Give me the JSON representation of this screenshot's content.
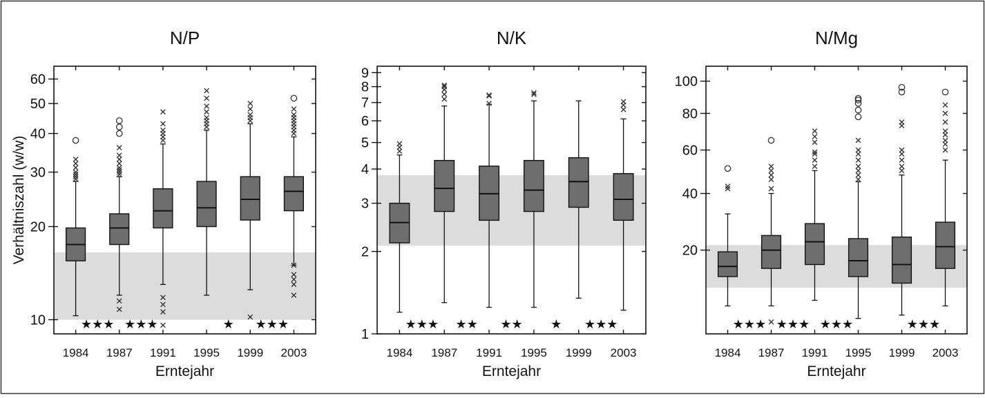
{
  "y_axis_label": "Verhältniszahl (w/w)",
  "colors": {
    "band": "#dcdcdc",
    "box": "#6e6e6e",
    "ink": "#111111"
  },
  "chart_data": [
    {
      "type": "boxplot",
      "title": "N/P",
      "xlabel": "Erntejahr",
      "ylabel": "Verhältniszahl (w/w)",
      "y_scale": "log",
      "ylim": [
        9,
        66
      ],
      "yticks": [
        10,
        20,
        30,
        40,
        50,
        60
      ],
      "categories": [
        "1984",
        "1987",
        "1991",
        "1995",
        "1999",
        "2003"
      ],
      "reference_band": [
        10,
        16.5
      ],
      "boxes": [
        {
          "q1": 15.5,
          "median": 17.5,
          "q3": 19.8,
          "whisker_low": 10.3,
          "whisker_high": 28
        },
        {
          "q1": 17.5,
          "median": 19.8,
          "q3": 22,
          "whisker_low": 12,
          "whisker_high": 29
        },
        {
          "q1": 19.8,
          "median": 22.5,
          "q3": 26.5,
          "whisker_low": 13,
          "whisker_high": 37
        },
        {
          "q1": 20,
          "median": 23,
          "q3": 28,
          "whisker_low": 12,
          "whisker_high": 41
        },
        {
          "q1": 21,
          "median": 24.5,
          "q3": 29,
          "whisker_low": 12.5,
          "whisker_high": 43
        },
        {
          "q1": 22.5,
          "median": 26,
          "q3": 29,
          "whisker_low": 15,
          "whisker_high": 39
        }
      ],
      "outliers": [
        {
          "x": 0,
          "values": [
            28.5,
            29,
            29.5,
            30,
            31,
            32,
            33
          ],
          "circles": [
            38
          ]
        },
        {
          "x": 1,
          "values": [
            29.5,
            30,
            30.5,
            31,
            32,
            33,
            34,
            36,
            11.5,
            10.8
          ],
          "circles": [
            40,
            42,
            44
          ]
        },
        {
          "x": 2,
          "values": [
            38,
            39,
            40,
            41,
            43,
            47,
            11.8,
            11.2,
            10.6,
            9.6
          ],
          "circles": []
        },
        {
          "x": 3,
          "values": [
            42,
            43,
            44,
            45,
            47,
            49,
            52,
            55
          ],
          "circles": []
        },
        {
          "x": 4,
          "values": [
            44,
            45,
            46,
            48,
            50,
            10.2
          ],
          "circles": []
        },
        {
          "x": 5,
          "values": [
            40,
            41,
            42,
            43,
            44,
            45,
            46,
            48,
            15,
            14,
            13.5,
            13,
            12
          ],
          "circles": [
            52
          ]
        }
      ],
      "significance": [
        {
          "between": [
            0,
            1
          ],
          "label": "★★★"
        },
        {
          "between": [
            1,
            2
          ],
          "label": "★★★"
        },
        {
          "between": [
            3,
            4
          ],
          "label": "★"
        },
        {
          "between": [
            4,
            5
          ],
          "label": "★★★"
        }
      ]
    },
    {
      "type": "boxplot",
      "title": "N/K",
      "xlabel": "Erntejahr",
      "y_scale": "log",
      "ylim": [
        1,
        9.5
      ],
      "yticks": [
        1,
        2,
        3,
        4,
        5,
        6,
        7,
        8,
        9
      ],
      "categories": [
        "1984",
        "1987",
        "1991",
        "1995",
        "1999",
        "2003"
      ],
      "reference_band": [
        2.1,
        3.8
      ],
      "boxes": [
        {
          "q1": 2.15,
          "median": 2.55,
          "q3": 3.0,
          "whisker_low": 1.2,
          "whisker_high": 4.5
        },
        {
          "q1": 2.8,
          "median": 3.4,
          "q3": 4.3,
          "whisker_low": 1.3,
          "whisker_high": 6.8
        },
        {
          "q1": 2.6,
          "median": 3.25,
          "q3": 4.1,
          "whisker_low": 1.25,
          "whisker_high": 6.9
        },
        {
          "q1": 2.8,
          "median": 3.35,
          "q3": 4.3,
          "whisker_low": 1.25,
          "whisker_high": 7.1
        },
        {
          "q1": 2.9,
          "median": 3.6,
          "q3": 4.4,
          "whisker_low": 1.35,
          "whisker_high": 7.1
        },
        {
          "q1": 2.6,
          "median": 3.1,
          "q3": 3.85,
          "whisker_low": 1.22,
          "whisker_high": 6.1
        }
      ],
      "outliers": [
        {
          "x": 0,
          "values": [
            4.65,
            4.8,
            4.95
          ],
          "circles": []
        },
        {
          "x": 1,
          "values": [
            7.2,
            7.5,
            7.8,
            8.0,
            8.1
          ],
          "circles": []
        },
        {
          "x": 2,
          "values": [
            6.95,
            7.4,
            7.45
          ],
          "circles": []
        },
        {
          "x": 3,
          "values": [
            7.5,
            7.6
          ],
          "circles": []
        },
        {
          "x": 4,
          "values": [],
          "circles": []
        },
        {
          "x": 5,
          "values": [
            6.6,
            6.85,
            7.05
          ],
          "circles": []
        }
      ],
      "significance": [
        {
          "between": [
            0,
            1
          ],
          "label": "★★★"
        },
        {
          "between": [
            1,
            2
          ],
          "label": "★★"
        },
        {
          "between": [
            2,
            3
          ],
          "label": "★★"
        },
        {
          "between": [
            3,
            4
          ],
          "label": "★"
        },
        {
          "between": [
            4,
            5
          ],
          "label": "★★★"
        }
      ]
    },
    {
      "type": "boxplot",
      "title": "N/Mg",
      "xlabel": "Erntejahr",
      "y_scale": "sqrt",
      "ylim": [
        3,
        110
      ],
      "yticks": [
        20,
        40,
        60,
        80,
        100
      ],
      "categories": [
        "1984",
        "1987",
        "1991",
        "1995",
        "1999",
        "2003"
      ],
      "reference_band": [
        10.5,
        21.5
      ],
      "boxes": [
        {
          "q1": 13,
          "median": 15.5,
          "q3": 19.5,
          "whisker_low": 7,
          "whisker_high": 32
        },
        {
          "q1": 15,
          "median": 20,
          "q3": 24.5,
          "whisker_low": 7,
          "whisker_high": 40
        },
        {
          "q1": 16,
          "median": 22.5,
          "q3": 28.5,
          "whisker_low": 8,
          "whisker_high": 50
        },
        {
          "q1": 13,
          "median": 17,
          "q3": 23.5,
          "whisker_low": 5,
          "whisker_high": 45
        },
        {
          "q1": 11.5,
          "median": 16,
          "q3": 24,
          "whisker_low": 5.5,
          "whisker_high": 48
        },
        {
          "q1": 15,
          "median": 21,
          "q3": 29,
          "whisker_low": 7,
          "whisker_high": 55
        }
      ],
      "outliers": [
        {
          "x": 0,
          "values": [
            42,
            43
          ],
          "circles": [
            51
          ]
        },
        {
          "x": 1,
          "values": [
            42,
            46,
            48,
            50,
            52,
            4.5
          ],
          "circles": [
            65
          ]
        },
        {
          "x": 2,
          "values": [
            52,
            55,
            58,
            59,
            64,
            67,
            70
          ],
          "circles": []
        },
        {
          "x": 3,
          "values": [
            46,
            48,
            50,
            52,
            55,
            58,
            60,
            65
          ],
          "circles": [
            78,
            82,
            86,
            88,
            89
          ]
        },
        {
          "x": 4,
          "values": [
            50,
            52,
            55,
            58,
            60,
            73,
            75
          ],
          "circles": [
            93,
            96
          ]
        },
        {
          "x": 5,
          "values": [
            60,
            63,
            65,
            68,
            70,
            75,
            80,
            85
          ],
          "circles": [
            93
          ]
        }
      ],
      "significance": [
        {
          "between": [
            0,
            1
          ],
          "label": "★★★"
        },
        {
          "between": [
            1,
            2
          ],
          "label": "★★★"
        },
        {
          "between": [
            2,
            3
          ],
          "label": "★★★"
        },
        {
          "between": [
            4,
            5
          ],
          "label": "★★★"
        }
      ]
    }
  ]
}
